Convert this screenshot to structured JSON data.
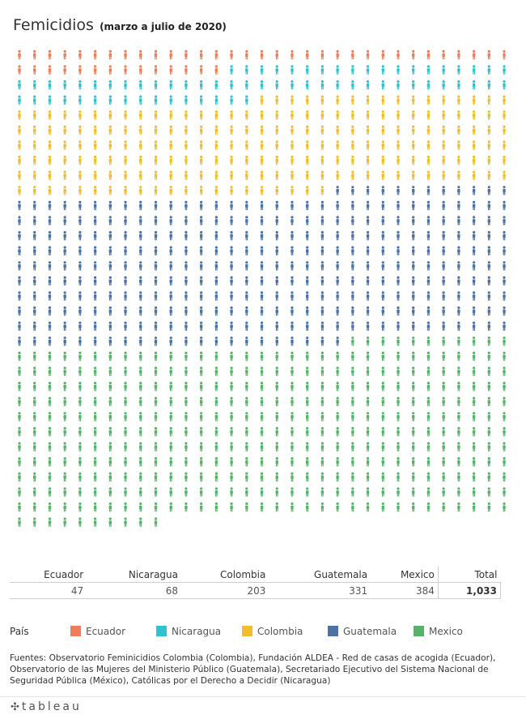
{
  "title": {
    "main": "Femicidios",
    "sub": "(marzo a julio de 2020)"
  },
  "colors": {
    "Ecuador": "#f07c5a",
    "Nicaragua": "#2ec4cc",
    "Colombia": "#f2bd2c",
    "Guatemala": "#4d73a4",
    "Mexico": "#57b36a"
  },
  "chart_data": {
    "type": "pictograph",
    "unit": "1 icono = 1 femicidio",
    "icons_per_row": 33,
    "series": [
      {
        "name": "Ecuador",
        "value": 47
      },
      {
        "name": "Nicaragua",
        "value": 68
      },
      {
        "name": "Colombia",
        "value": 203
      },
      {
        "name": "Guatemala",
        "value": 331
      },
      {
        "name": "Mexico",
        "value": 384
      }
    ],
    "total": 1033
  },
  "summary_table": {
    "headers": [
      "Ecuador",
      "Nicaragua",
      "Colombia",
      "Guatemala",
      "Mexico",
      "Total"
    ],
    "values": [
      "47",
      "68",
      "203",
      "331",
      "384",
      "1,033"
    ]
  },
  "legend": {
    "title": "País",
    "items": [
      "Ecuador",
      "Nicaragua",
      "Colombia",
      "Guatemala",
      "Mexico"
    ]
  },
  "source": "Fuentes: Observatorio Feminicidios Colombia (Colombia), Fundación ALDEA - Red de casas de acogida (Ecuador), Observatorio de las Mujeres del Ministerio Público (Guatemala), Secretariado Ejecutivo del Sistema Nacional de Seguridad Pública (México), Católicas por el Derecho a Decidir (Nicaragua)",
  "footer": {
    "brand": "tableau",
    "logo_icon": "tableau-plus-icon"
  }
}
